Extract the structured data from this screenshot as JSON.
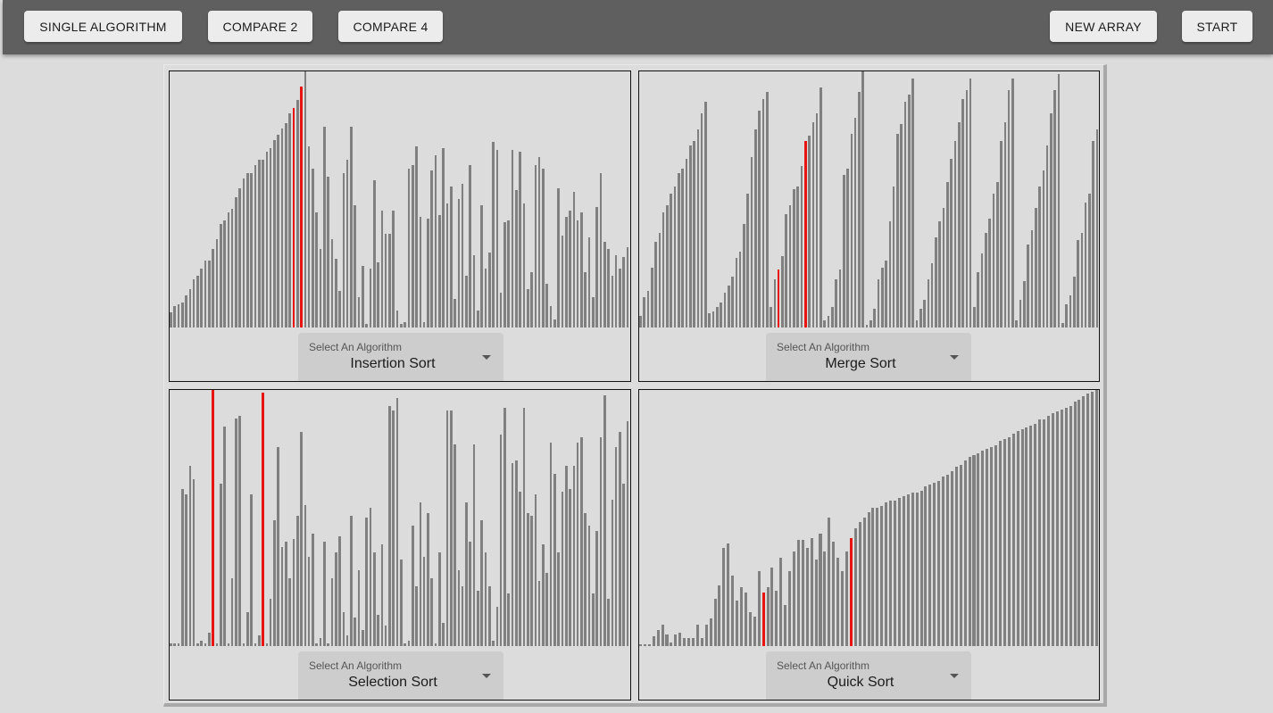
{
  "toolbar": {
    "single_label": "SINGLE ALGORITHM",
    "compare2_label": "COMPARE 2",
    "compare4_label": "COMPARE 4",
    "new_array_label": "NEW ARRAY",
    "start_label": "START"
  },
  "colors": {
    "bar": "#808080",
    "highlight": "#e8140f"
  },
  "panels": [
    {
      "select_label": "Select An Algorithm",
      "algorithm": "Insertion Sort",
      "highlight": [
        32,
        34
      ],
      "values": [
        8,
        11,
        12,
        13,
        17,
        20,
        25,
        27,
        31,
        35,
        35,
        41,
        46,
        54,
        56,
        60,
        62,
        68,
        73,
        78,
        81,
        81,
        85,
        88,
        88,
        92,
        94,
        98,
        101,
        104,
        107,
        112,
        115,
        119,
        126,
        134,
        95,
        83,
        60,
        41,
        105,
        79,
        46,
        36,
        19,
        81,
        88,
        105,
        64,
        16,
        32,
        2,
        31,
        77,
        34,
        61,
        49,
        49,
        61,
        9,
        2,
        3,
        83,
        85,
        95,
        58,
        3,
        57,
        82,
        90,
        59,
        94,
        65,
        74,
        15,
        67,
        75,
        27,
        85,
        38,
        9,
        64,
        31,
        39,
        97,
        93,
        18,
        55,
        56,
        93,
        72,
        92,
        65,
        20,
        29,
        85,
        89,
        83,
        23,
        11,
        4,
        73,
        48,
        58,
        61,
        71,
        56,
        60,
        29,
        47,
        16,
        63,
        81,
        45,
        41,
        27,
        38,
        31,
        37,
        42
      ]
    },
    {
      "select_label": "Select An Algorithm",
      "algorithm": "Merge Sort",
      "highlight": [
        36,
        43
      ],
      "values": [
        5,
        13,
        16,
        26,
        37,
        41,
        50,
        53,
        58,
        61,
        67,
        69,
        73,
        79,
        81,
        86,
        93,
        98,
        6,
        7,
        9,
        11,
        15,
        18,
        22,
        30,
        33,
        45,
        58,
        74,
        86,
        94,
        99,
        102,
        9,
        21,
        25,
        31,
        49,
        53,
        60,
        61,
        70,
        81,
        83,
        89,
        93,
        104,
        3,
        5,
        9,
        21,
        25,
        66,
        69,
        84,
        91,
        102,
        111,
        1,
        3,
        8,
        21,
        26,
        29,
        46,
        61,
        84,
        88,
        98,
        101,
        108,
        3,
        8,
        12,
        21,
        28,
        39,
        46,
        52,
        63,
        73,
        81,
        89,
        99,
        103,
        108,
        9,
        24,
        32,
        41,
        47,
        58,
        63,
        81,
        89,
        103,
        108,
        3,
        12,
        20,
        36,
        42,
        52,
        61,
        68,
        79,
        93,
        103,
        110,
        2,
        10,
        14,
        22,
        38,
        41,
        54,
        58,
        81,
        86
      ]
    },
    {
      "select_label": "Select An Algorithm",
      "algorithm": "Selection Sort",
      "highlight": [
        11,
        24
      ],
      "values": [
        1,
        1,
        1,
        60,
        58,
        69,
        64,
        1,
        2,
        1,
        5,
        98,
        1,
        62,
        84,
        1,
        26,
        87,
        88,
        1,
        13,
        58,
        1,
        4,
        97,
        1,
        18,
        48,
        76,
        38,
        40,
        26,
        41,
        50,
        82,
        54,
        34,
        43,
        1,
        3,
        40,
        1,
        26,
        36,
        42,
        13,
        4,
        50,
        11,
        29,
        6,
        49,
        53,
        36,
        12,
        39,
        8,
        92,
        90,
        95,
        33,
        1,
        2,
        46,
        23,
        55,
        34,
        51,
        26,
        1,
        36,
        9,
        90,
        90,
        77,
        29,
        23,
        55,
        40,
        77,
        21,
        48,
        36,
        23,
        2,
        15,
        81,
        91,
        20,
        70,
        71,
        59,
        91,
        51,
        50,
        58,
        25,
        39,
        28,
        78,
        66,
        36,
        59,
        69,
        60,
        69,
        78,
        80,
        51,
        46,
        20,
        44,
        80,
        96,
        18,
        56,
        76,
        82,
        62,
        86
      ]
    },
    {
      "select_label": "Select An Algorithm",
      "algorithm": "Quick Sort",
      "highlight": [
        28,
        48
      ],
      "values": [
        1,
        1,
        1,
        5,
        8,
        11,
        6,
        2,
        6,
        7,
        4,
        4,
        4,
        11,
        4,
        11,
        14,
        24,
        31,
        50,
        52,
        36,
        23,
        30,
        27,
        17,
        15,
        38,
        27,
        30,
        40,
        28,
        45,
        21,
        38,
        48,
        54,
        54,
        50,
        55,
        44,
        57,
        48,
        65,
        53,
        45,
        38,
        48,
        55,
        60,
        63,
        65,
        68,
        70,
        70,
        71,
        73,
        74,
        74,
        75,
        76,
        77,
        78,
        78,
        79,
        81,
        82,
        83,
        84,
        86,
        87,
        89,
        91,
        92,
        94,
        96,
        97,
        98,
        99,
        100,
        101,
        102,
        104,
        105,
        106,
        108,
        109,
        110,
        111,
        112,
        113,
        115,
        115,
        117,
        118,
        119,
        120,
        121,
        122,
        124,
        125,
        127,
        128,
        129,
        130
      ]
    }
  ]
}
